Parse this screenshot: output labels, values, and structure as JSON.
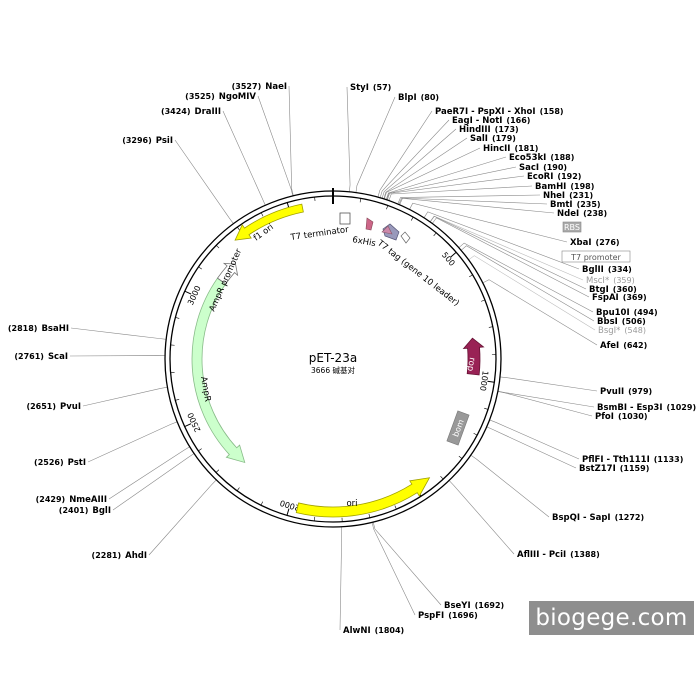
{
  "plasmid": {
    "name": "pET-23a",
    "length": 3666,
    "length_label": "3666 碱基对"
  },
  "ticks": [
    {
      "bp": 500,
      "label": "500"
    },
    {
      "bp": 1000,
      "label": "1000"
    },
    {
      "bp": 1500,
      "label": "1500"
    },
    {
      "bp": 2000,
      "label": "2000"
    },
    {
      "bp": 2500,
      "label": "2500"
    },
    {
      "bp": 3000,
      "label": "3000"
    },
    {
      "bp": 3500,
      "label": "3500"
    }
  ],
  "sites": [
    {
      "name": "StyI",
      "pos": "(57)",
      "bp": 57
    },
    {
      "name": "BlpI",
      "pos": "(80)",
      "bp": 80
    },
    {
      "name": "PaeR7I - PspXI - XhoI",
      "pos": "(158)",
      "bp": 158
    },
    {
      "name": "EagI - NotI",
      "pos": "(166)",
      "bp": 166
    },
    {
      "name": "HindIII",
      "pos": "(173)",
      "bp": 173
    },
    {
      "name": "SalI",
      "pos": "(179)",
      "bp": 179
    },
    {
      "name": "HincII",
      "pos": "(181)",
      "bp": 181
    },
    {
      "name": "Eco53kI",
      "pos": "(188)",
      "bp": 188
    },
    {
      "name": "SacI",
      "pos": "(190)",
      "bp": 190
    },
    {
      "name": "EcoRI",
      "pos": "(192)",
      "bp": 192
    },
    {
      "name": "BamHI",
      "pos": "(198)",
      "bp": 198
    },
    {
      "name": "NheI",
      "pos": "(231)",
      "bp": 231
    },
    {
      "name": "BmtI",
      "pos": "(235)",
      "bp": 235
    },
    {
      "name": "NdeI",
      "pos": "(238)",
      "bp": 238
    },
    {
      "name": "XbaI",
      "pos": "(276)",
      "bp": 276
    },
    {
      "name": "BglII",
      "pos": "(334)",
      "bp": 334
    },
    {
      "name": "MscI*",
      "pos": "(359)",
      "bp": 359,
      "dim": true
    },
    {
      "name": "BtgI",
      "pos": "(360)",
      "bp": 360
    },
    {
      "name": "FspAI",
      "pos": "(369)",
      "bp": 369
    },
    {
      "name": "Bpu10I",
      "pos": "(494)",
      "bp": 494
    },
    {
      "name": "BbsI",
      "pos": "(506)",
      "bp": 506
    },
    {
      "name": "BsgI*",
      "pos": "(548)",
      "bp": 548,
      "dim": true
    },
    {
      "name": "AfeI",
      "pos": "(642)",
      "bp": 642
    },
    {
      "name": "PvuII",
      "pos": "(979)",
      "bp": 979
    },
    {
      "name": "BsmBI - Esp3I",
      "pos": "(1029)",
      "bp": 1029
    },
    {
      "name": "PfoI",
      "pos": "(1030)",
      "bp": 1030
    },
    {
      "name": "PflFI - Tth111I",
      "pos": "(1133)",
      "bp": 1133
    },
    {
      "name": "BstZ17I",
      "pos": "(1159)",
      "bp": 1159
    },
    {
      "name": "BspQI - SapI",
      "pos": "(1272)",
      "bp": 1272
    },
    {
      "name": "AflIII - PciI",
      "pos": "(1388)",
      "bp": 1388
    },
    {
      "name": "BseYI",
      "pos": "(1692)",
      "bp": 1692
    },
    {
      "name": "PspFI",
      "pos": "(1696)",
      "bp": 1696
    },
    {
      "name": "AlwNI",
      "pos": "(1804)",
      "bp": 1804
    },
    {
      "name": "AhdI",
      "pos": "(2281)",
      "bp": 2281
    },
    {
      "name": "BglI",
      "pos": "(2401)",
      "bp": 2401
    },
    {
      "name": "NmeAIII",
      "pos": "(2429)",
      "bp": 2429
    },
    {
      "name": "PstI",
      "pos": "(2526)",
      "bp": 2526
    },
    {
      "name": "PvuI",
      "pos": "(2651)",
      "bp": 2651
    },
    {
      "name": "ScaI",
      "pos": "(2761)",
      "bp": 2761
    },
    {
      "name": "BsaHI",
      "pos": "(2818)",
      "bp": 2818
    },
    {
      "name": "PsiI",
      "pos": "(3296)",
      "bp": 3296
    },
    {
      "name": "DraIII",
      "pos": "(3424)",
      "bp": 3424
    },
    {
      "name": "NgoMIV",
      "pos": "(3525)",
      "bp": 3525
    },
    {
      "name": "NaeI",
      "pos": "(3527)",
      "bp": 3527
    }
  ],
  "features": [
    {
      "name": "f1 ori",
      "start": 3264,
      "end": 3550,
      "strand": "rev",
      "color": "#ffff00",
      "stroke": "#a0a000"
    },
    {
      "name": "AmpR promoter",
      "start": 3106,
      "end": 3200,
      "strand": "fwd",
      "color": "#ffffff",
      "stroke": "#777777"
    },
    {
      "name": "AmpR",
      "start": 2245,
      "end": 3105,
      "strand": "rev",
      "color": "#ccffcc",
      "stroke": "#88bb88"
    },
    {
      "name": "ori",
      "start": 1435,
      "end": 1970,
      "strand": "rev",
      "color": "#ffff00",
      "stroke": "#a0a000"
    },
    {
      "name": "rop",
      "start": 830,
      "end": 980,
      "strand": "rev",
      "color": "#992255",
      "stroke": "#661133"
    },
    {
      "name": "bom",
      "color": "#999999"
    },
    {
      "name": "T7 terminator",
      "color": "#ffffff"
    },
    {
      "name": "6xHis",
      "color": "#cc6688"
    },
    {
      "name": "T7 tag (gene 10 leader)",
      "color": "#9999bb"
    },
    {
      "name": "RBS",
      "color": "#aaaaaa"
    },
    {
      "name": "T7 promoter",
      "color": "#ffffff"
    }
  ],
  "watermark": "biogege.com"
}
